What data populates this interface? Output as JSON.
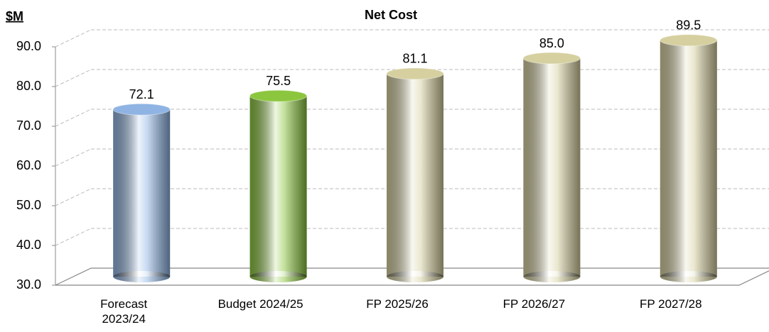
{
  "chart_data": {
    "type": "bar",
    "title": "Net Cost",
    "y_label": "$M",
    "categories": [
      "Forecast 2023/24",
      "Budget 2024/25",
      "FP 2025/26",
      "FP 2026/27",
      "FP 2027/28"
    ],
    "values": [
      72.1,
      75.5,
      81.1,
      85.0,
      89.5
    ],
    "value_labels": [
      "72.1",
      "75.5",
      "81.1",
      "85.0",
      "89.5"
    ],
    "colors": [
      "#8fb4e3",
      "#8cc63f",
      "#d6d0a0",
      "#d6d0a0",
      "#d6d0a0"
    ],
    "ylim": [
      30,
      90
    ],
    "yticks": [
      {
        "value": 30,
        "label": "30.0"
      },
      {
        "value": 40,
        "label": "40.0"
      },
      {
        "value": 50,
        "label": "50.0"
      },
      {
        "value": 60,
        "label": "60.0"
      },
      {
        "value": 70,
        "label": "70.0"
      },
      {
        "value": 80,
        "label": "80.0"
      },
      {
        "value": 90,
        "label": "90.0"
      }
    ],
    "grid": true
  }
}
